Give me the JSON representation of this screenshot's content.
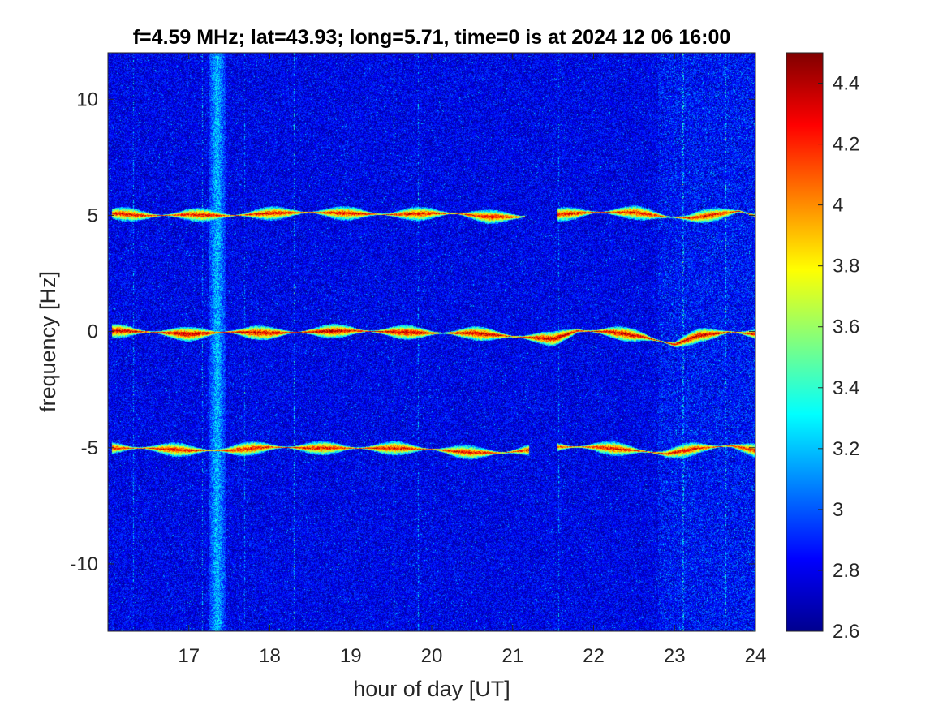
{
  "chart_data": {
    "type": "heatmap",
    "title": "f=4.59 MHz;  lat=43.93; long=5.71, time=0 is at 2024 12 06 16:00",
    "xlabel": "hour of day [UT]",
    "ylabel": "frequency [Hz]",
    "xlim": [
      16.0,
      24.0
    ],
    "ylim": [
      -12.9,
      12.0
    ],
    "x_ticks": [
      17,
      18,
      19,
      20,
      21,
      22,
      23,
      24
    ],
    "y_ticks": [
      -10,
      -5,
      0,
      5,
      10
    ],
    "colorbar": {
      "limits": [
        2.6,
        4.5
      ],
      "ticks": [
        2.6,
        2.8,
        3,
        3.2,
        3.4,
        3.6,
        3.8,
        4,
        4.2,
        4.4
      ],
      "colormap": "jet"
    },
    "background_level": 2.8,
    "vertical_band": {
      "x_center": 17.35,
      "x_width": 0.2,
      "level": 3.2
    },
    "traces": [
      {
        "label": "+5 Hz doppler echo",
        "points": [
          [
            16.05,
            5.1
          ],
          [
            16.5,
            5.0
          ],
          [
            17.0,
            5.05
          ],
          [
            17.5,
            5.0
          ],
          [
            18.0,
            5.1
          ],
          [
            18.5,
            5.15
          ],
          [
            19.0,
            5.1
          ],
          [
            19.5,
            5.05
          ],
          [
            20.0,
            5.1
          ],
          [
            20.3,
            5.1
          ],
          [
            20.7,
            4.95
          ],
          [
            21.1,
            4.95
          ],
          [
            21.55,
            5.05
          ],
          [
            22.0,
            5.15
          ],
          [
            22.5,
            5.15
          ],
          [
            22.9,
            4.95
          ],
          [
            23.2,
            4.9
          ],
          [
            23.5,
            5.05
          ],
          [
            23.8,
            5.2
          ],
          [
            24.0,
            5.0
          ]
        ],
        "gaps": [
          [
            21.15,
            21.55
          ]
        ],
        "level": 4.3
      },
      {
        "label": "0 Hz main echo",
        "points": [
          [
            16.05,
            0.05
          ],
          [
            16.5,
            0.0
          ],
          [
            17.0,
            -0.1
          ],
          [
            17.5,
            0.0
          ],
          [
            18.0,
            -0.05
          ],
          [
            18.5,
            0.0
          ],
          [
            19.0,
            0.05
          ],
          [
            19.5,
            0.0
          ],
          [
            20.0,
            -0.05
          ],
          [
            20.5,
            -0.05
          ],
          [
            21.0,
            -0.2
          ],
          [
            21.5,
            -0.3
          ],
          [
            21.8,
            0.05
          ],
          [
            22.2,
            0.0
          ],
          [
            22.6,
            -0.2
          ],
          [
            23.0,
            -0.55
          ],
          [
            23.3,
            -0.15
          ],
          [
            23.7,
            0.0
          ],
          [
            24.0,
            -0.1
          ]
        ],
        "gaps": [],
        "level": 4.4
      },
      {
        "label": "-5 Hz doppler echo",
        "points": [
          [
            16.05,
            -5.0
          ],
          [
            16.5,
            -5.0
          ],
          [
            17.0,
            -5.1
          ],
          [
            17.5,
            -5.1
          ],
          [
            18.0,
            -4.95
          ],
          [
            18.5,
            -5.0
          ],
          [
            19.0,
            -5.0
          ],
          [
            19.5,
            -5.0
          ],
          [
            20.0,
            -5.05
          ],
          [
            20.5,
            -5.2
          ],
          [
            20.9,
            -5.2
          ],
          [
            21.15,
            -5.1
          ],
          [
            21.55,
            -4.95
          ],
          [
            22.0,
            -4.95
          ],
          [
            22.5,
            -5.1
          ],
          [
            22.9,
            -5.25
          ],
          [
            23.3,
            -5.0
          ],
          [
            23.7,
            -4.9
          ],
          [
            24.0,
            -5.1
          ]
        ],
        "gaps": [
          [
            21.2,
            21.55
          ]
        ],
        "level": 4.3
      }
    ]
  }
}
